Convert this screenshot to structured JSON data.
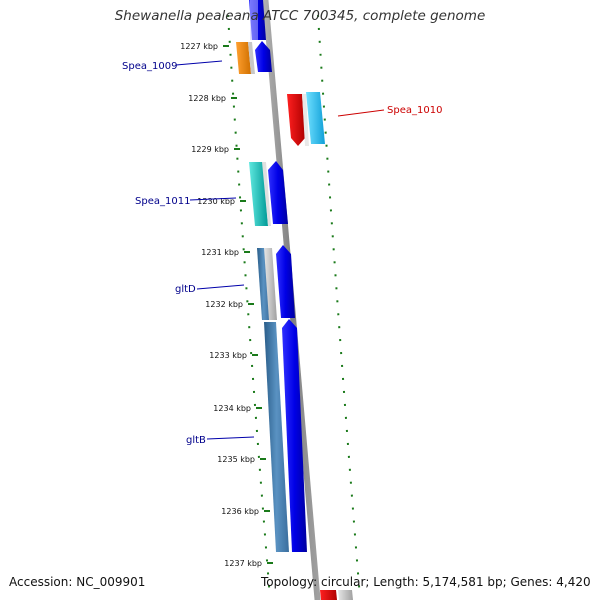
{
  "title": "Shewanella pealeana ATCC 700345, complete genome",
  "footer": {
    "accession": "Accession: NC_009901",
    "topology": "Topology: circular; Length: 5,174,581 bp; Genes: 4,420"
  },
  "ticks": [
    "1227 kbp",
    "1228 kbp",
    "1229 kbp",
    "1230 kbp",
    "1231 kbp",
    "1232 kbp",
    "1233 kbp",
    "1234 kbp",
    "1235 kbp",
    "1236 kbp",
    "1237 kbp"
  ],
  "gene_labels": [
    {
      "text": "Spea_1009",
      "color": "#00008b"
    },
    {
      "text": "Spea_1010",
      "color": "#cc0000"
    },
    {
      "text": "Spea_1011",
      "color": "#00008b"
    },
    {
      "text": "gltD",
      "color": "#00008b"
    },
    {
      "text": "gltB",
      "color": "#00008b"
    }
  ],
  "colors": {
    "backbone": "#8c8c8c",
    "gc_dots": "#1a7a1a",
    "blue": "#0a0af0",
    "orange": "#f08c10",
    "red": "#e00000",
    "skyblue": "#20c0f0",
    "teal": "#10c8c0",
    "steelblue": "#4682b4",
    "gray": "#b8b8b8"
  }
}
